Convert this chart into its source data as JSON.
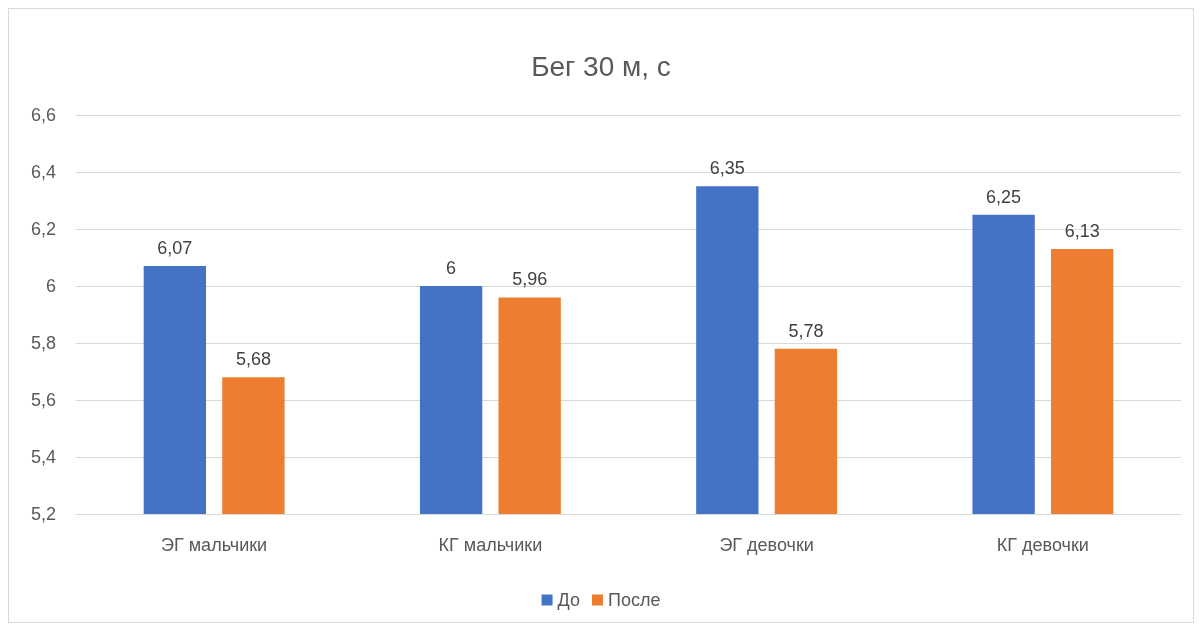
{
  "chart_data": {
    "type": "bar",
    "title": "Бег 30 м, с",
    "categories": [
      "ЭГ мальчики",
      "КГ мальчики",
      "ЭГ девочки",
      "КГ девочки"
    ],
    "series": [
      {
        "name": "До",
        "color": "#4472c4",
        "values": [
          6.07,
          6,
          6.35,
          6.25
        ],
        "value_labels": [
          "6,07",
          "6",
          "6,35",
          "6,25"
        ]
      },
      {
        "name": "После",
        "color": "#ed7d31",
        "values": [
          5.68,
          5.96,
          5.78,
          6.13
        ],
        "value_labels": [
          "5,68",
          "5,96",
          "5,78",
          "6,13"
        ]
      }
    ],
    "ylim": [
      5.2,
      6.6
    ],
    "yticks": [
      {
        "value": 5.2,
        "label": "5,2"
      },
      {
        "value": 5.4,
        "label": "5,4"
      },
      {
        "value": 5.6,
        "label": "5,6"
      },
      {
        "value": 5.8,
        "label": "5,8"
      },
      {
        "value": 6,
        "label": "6"
      },
      {
        "value": 6.2,
        "label": "6,2"
      },
      {
        "value": 6.4,
        "label": "6,4"
      },
      {
        "value": 6.6,
        "label": "6,6"
      }
    ],
    "grid": "y",
    "legend": "bottom"
  }
}
